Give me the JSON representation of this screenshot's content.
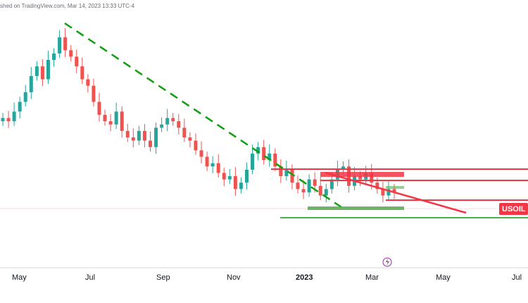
{
  "header": {
    "watermark": "shed on TradingView.com, Mar 14, 2023 13:33 UTC-4"
  },
  "symbol": {
    "label": "USOIL"
  },
  "colors": {
    "up": "#26a69a",
    "down": "#ef5350",
    "trend": "#109f10",
    "zone": "#f23645",
    "support": "#4caf50"
  },
  "icons": {
    "event": "lightning-icon"
  },
  "chart_data": {
    "type": "candlestick",
    "x_axis_labels": [
      "May",
      "Jul",
      "Sep",
      "Nov",
      "2023",
      "Mar",
      "May",
      "Jul"
    ],
    "bold_label": "2023",
    "candles_close": [
      95,
      94,
      97,
      100,
      103,
      108,
      111,
      107,
      113,
      115,
      120,
      116,
      114,
      111,
      107,
      105,
      100,
      96,
      94,
      93,
      97,
      91,
      89,
      88,
      91,
      88,
      86,
      92,
      93,
      95,
      94,
      92,
      89,
      88,
      85,
      83,
      80,
      81,
      78,
      76,
      77,
      73,
      75,
      79,
      84,
      86,
      82,
      84,
      80,
      77,
      79,
      75,
      73,
      72,
      76,
      74,
      71,
      73,
      76,
      79,
      80,
      74,
      77,
      76,
      78,
      75,
      73,
      71,
      73,
      72
    ]
  }
}
